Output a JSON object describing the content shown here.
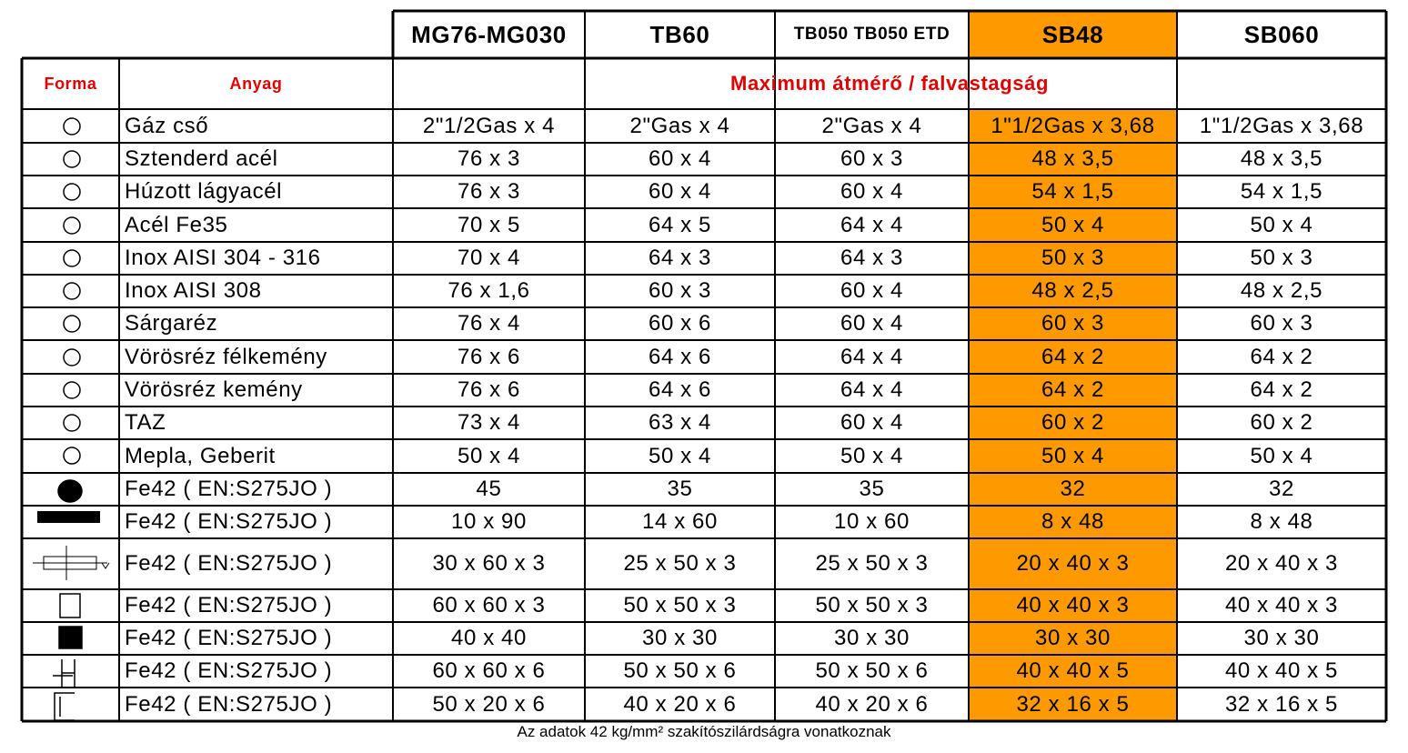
{
  "table": {
    "header": [
      "MG76-MG030",
      "TB60",
      "TB050 TB050 ETD",
      "SB48",
      "SB060"
    ],
    "forma": "Forma",
    "anyag": "Anyag",
    "span": "Maximum átmérő / falvastagság",
    "rows": [
      [
        "Gáz cső",
        "2\"1/2Gas x 4",
        "2\"Gas x 4",
        "2\"Gas x 4",
        "1\"1/2Gas x 3,68",
        "1\"1/2Gas x 3,68"
      ],
      [
        "Sztenderd acél",
        "76 x 3",
        "60 x 4",
        "60 x 3",
        "48 x 3,5",
        "48 x 3,5"
      ],
      [
        "Húzott lágyacél",
        "76 x 3",
        "60 x 4",
        "60 x 4",
        "54 x 1,5",
        "54 x 1,5"
      ],
      [
        "Acél Fe35",
        "70 x 5",
        "64 x 5",
        "64 x 4",
        "50 x 4",
        "50 x 4"
      ],
      [
        "Inox  AISI 304 - 316",
        "70 x 4",
        "64 x 3",
        "64 x 3",
        "50 x 3",
        "50 x 3"
      ],
      [
        "Inox  AISI 308",
        "76 x 1,6",
        "60 x 3",
        "60 x 4",
        "48 x 2,5",
        "48 x 2,5"
      ],
      [
        "Sárgaréz",
        "76 x 4",
        "60 x 6",
        "60 x 4",
        "60 x 3",
        "60 x 3"
      ],
      [
        "Vörösréz félkemény",
        "76 x 6",
        "64 x 6",
        "64 x 4",
        "64 x 2",
        "64 x 2"
      ],
      [
        "Vörösréz kemény",
        "76 x 6",
        "64 x 6",
        "64 x 4",
        "64 x 2",
        "64 x 2"
      ],
      [
        "TAZ",
        "73 x 4",
        "63 x 4",
        "60 x 4",
        "60 x 2",
        "60 x 2"
      ],
      [
        "Mepla, Geberit",
        "50 x 4",
        "50 x 4",
        "50 x 4",
        "50 x 4",
        "50 x 4"
      ],
      [
        "Fe42 ( EN:S275JO )",
        "45",
        "35",
        "35",
        "32",
        "32"
      ],
      [
        "Fe42 ( EN:S275JO )",
        "10 x 90",
        "14 x 60",
        "10 x 60",
        "8 x 48",
        "8 x 48"
      ],
      [
        "Fe42 ( EN:S275JO )",
        "30 x 60 x 3",
        "25 x 50 x 3",
        "25 x 50 x 3",
        "20 x 40 x 3",
        "20 x 40 x 3"
      ],
      [
        "Fe42 ( EN:S275JO )",
        "60 x 60 x 3",
        "50 x 50 x 3",
        "50 x 50 x 3",
        "40 x 40 x 3",
        "40 x 40 x 3"
      ],
      [
        "Fe42 ( EN:S275JO )",
        "40 x 40",
        "30 x 30",
        "30 x 30",
        "30 x 30",
        "30 x 30"
      ],
      [
        "Fe42 ( EN:S275JO )",
        "60 x 60 x 6",
        "50 x 50 x 6",
        "50 x 50 x 6",
        "40 x 40 x 5",
        "40 x 40 x 5"
      ],
      [
        "Fe42 ( EN:S275JO )",
        "50 x 20 x 6",
        "40 x 20 x 6",
        "40 x 20 x 6",
        "32 x 16 x 5",
        "32 x 16 x 5"
      ]
    ],
    "footnote": "Az adatok 42 kg/mm² szakítószilárdságra vonatkoznak"
  }
}
